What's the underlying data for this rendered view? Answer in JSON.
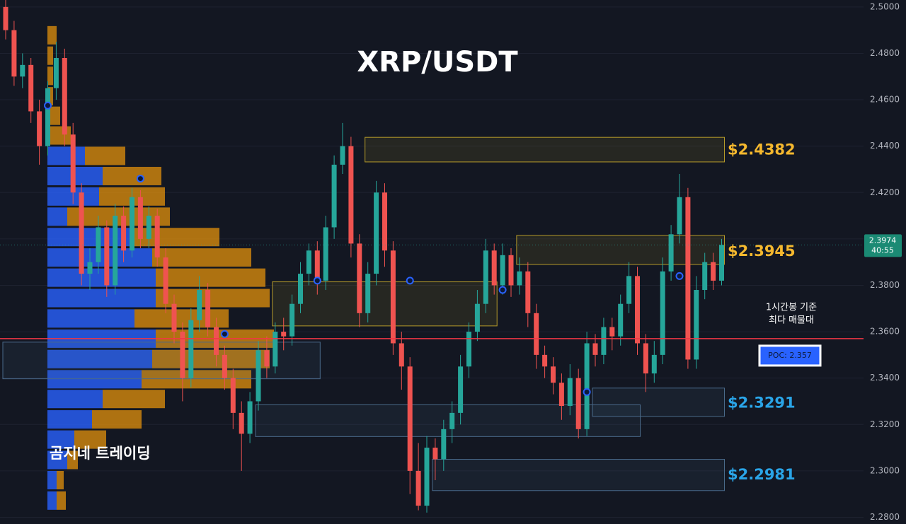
{
  "chart_data": {
    "type": "candlestick",
    "title": "XRP/USDT",
    "watermark": "곰지네 트레이딩",
    "annotation": [
      "1시간봉 기준",
      "최다 매물대"
    ],
    "up_color": "#26a69a",
    "down_color": "#ef5350",
    "ylim": [
      2.2771,
      2.503
    ],
    "yticks": [
      {
        "value": 2.28,
        "label": "2.2800"
      },
      {
        "value": 2.3,
        "label": "2.3000"
      },
      {
        "value": 2.32,
        "label": "2.3200"
      },
      {
        "value": 2.34,
        "label": "2.3400"
      },
      {
        "value": 2.36,
        "label": "2.3600"
      },
      {
        "value": 2.38,
        "label": "2.3800"
      },
      {
        "value": 2.4,
        "label": "2.4000"
      },
      {
        "value": 2.42,
        "label": "2.4200"
      },
      {
        "value": 2.44,
        "label": "2.4400"
      },
      {
        "value": 2.46,
        "label": "2.4600"
      },
      {
        "value": 2.48,
        "label": "2.4800"
      },
      {
        "value": 2.5,
        "label": "2.5000"
      }
    ],
    "countdown": "40:55",
    "poc": {
      "value": 2.357,
      "label": "POC: 2.357",
      "color": "#f23645"
    },
    "candles": [
      [
        2.5,
        2.503,
        2.486,
        2.49
      ],
      [
        2.49,
        2.494,
        2.466,
        2.47
      ],
      [
        2.47,
        2.48,
        2.465,
        2.475
      ],
      [
        2.475,
        2.478,
        2.45,
        2.455
      ],
      [
        2.455,
        2.46,
        2.432,
        2.44
      ],
      [
        2.44,
        2.468,
        2.436,
        2.465
      ],
      [
        2.465,
        2.485,
        2.46,
        2.478
      ],
      [
        2.478,
        2.482,
        2.44,
        2.445
      ],
      [
        2.445,
        2.45,
        2.415,
        2.42
      ],
      [
        2.42,
        2.424,
        2.38,
        2.385
      ],
      [
        2.385,
        2.396,
        2.378,
        2.39
      ],
      [
        2.39,
        2.41,
        2.385,
        2.405
      ],
      [
        2.405,
        2.408,
        2.375,
        2.38
      ],
      [
        2.38,
        2.415,
        2.376,
        2.41
      ],
      [
        2.41,
        2.414,
        2.39,
        2.395
      ],
      [
        2.395,
        2.422,
        2.392,
        2.418
      ],
      [
        2.418,
        2.421,
        2.396,
        2.4
      ],
      [
        2.4,
        2.414,
        2.396,
        2.41
      ],
      [
        2.41,
        2.413,
        2.388,
        2.392
      ],
      [
        2.392,
        2.396,
        2.368,
        2.372
      ],
      [
        2.372,
        2.376,
        2.355,
        2.36
      ],
      [
        2.36,
        2.364,
        2.33,
        2.34
      ],
      [
        2.34,
        2.37,
        2.336,
        2.365
      ],
      [
        2.365,
        2.384,
        2.36,
        2.378
      ],
      [
        2.378,
        2.381,
        2.358,
        2.362
      ],
      [
        2.362,
        2.366,
        2.345,
        2.35
      ],
      [
        2.35,
        2.354,
        2.335,
        2.34
      ],
      [
        2.34,
        2.344,
        2.318,
        2.325
      ],
      [
        2.325,
        2.33,
        2.3,
        2.316
      ],
      [
        2.316,
        2.334,
        2.312,
        2.33
      ],
      [
        2.33,
        2.356,
        2.326,
        2.352
      ],
      [
        2.352,
        2.358,
        2.34,
        2.345
      ],
      [
        2.345,
        2.364,
        2.342,
        2.36
      ],
      [
        2.36,
        2.366,
        2.352,
        2.358
      ],
      [
        2.358,
        2.376,
        2.354,
        2.372
      ],
      [
        2.372,
        2.39,
        2.368,
        2.385
      ],
      [
        2.385,
        2.398,
        2.38,
        2.395
      ],
      [
        2.395,
        2.399,
        2.376,
        2.382
      ],
      [
        2.382,
        2.41,
        2.378,
        2.405
      ],
      [
        2.405,
        2.436,
        2.4,
        2.432
      ],
      [
        2.432,
        2.45,
        2.428,
        2.44
      ],
      [
        2.44,
        2.444,
        2.392,
        2.398
      ],
      [
        2.398,
        2.402,
        2.362,
        2.368
      ],
      [
        2.368,
        2.39,
        2.364,
        2.385
      ],
      [
        2.385,
        2.425,
        2.38,
        2.42
      ],
      [
        2.42,
        2.424,
        2.388,
        2.395
      ],
      [
        2.395,
        2.399,
        2.35,
        2.355
      ],
      [
        2.355,
        2.36,
        2.335,
        2.345
      ],
      [
        2.345,
        2.349,
        2.29,
        2.3
      ],
      [
        2.3,
        2.312,
        2.283,
        2.285
      ],
      [
        2.285,
        2.315,
        2.282,
        2.31
      ],
      [
        2.31,
        2.314,
        2.296,
        2.305
      ],
      [
        2.305,
        2.322,
        2.3,
        2.318
      ],
      [
        2.318,
        2.33,
        2.312,
        2.325
      ],
      [
        2.325,
        2.35,
        2.32,
        2.345
      ],
      [
        2.345,
        2.364,
        2.34,
        2.36
      ],
      [
        2.36,
        2.378,
        2.356,
        2.372
      ],
      [
        2.372,
        2.4,
        2.368,
        2.395
      ],
      [
        2.395,
        2.398,
        2.376,
        2.38
      ],
      [
        2.38,
        2.398,
        2.376,
        2.393
      ],
      [
        2.393,
        2.396,
        2.375,
        2.38
      ],
      [
        2.38,
        2.392,
        2.376,
        2.386
      ],
      [
        2.386,
        2.39,
        2.362,
        2.368
      ],
      [
        2.368,
        2.372,
        2.344,
        2.35
      ],
      [
        2.35,
        2.354,
        2.34,
        2.345
      ],
      [
        2.345,
        2.349,
        2.333,
        2.338
      ],
      [
        2.338,
        2.342,
        2.322,
        2.328
      ],
      [
        2.328,
        2.346,
        2.324,
        2.34
      ],
      [
        2.34,
        2.344,
        2.314,
        2.318
      ],
      [
        2.318,
        2.36,
        2.315,
        2.355
      ],
      [
        2.355,
        2.359,
        2.345,
        2.35
      ],
      [
        2.35,
        2.366,
        2.346,
        2.362
      ],
      [
        2.362,
        2.366,
        2.352,
        2.358
      ],
      [
        2.358,
        2.376,
        2.354,
        2.372
      ],
      [
        2.372,
        2.39,
        2.368,
        2.384
      ],
      [
        2.384,
        2.388,
        2.35,
        2.355
      ],
      [
        2.355,
        2.359,
        2.334,
        2.342
      ],
      [
        2.342,
        2.356,
        2.338,
        2.35
      ],
      [
        2.35,
        2.392,
        2.346,
        2.386
      ],
      [
        2.386,
        2.406,
        2.382,
        2.402
      ],
      [
        2.402,
        2.428,
        2.398,
        2.418
      ],
      [
        2.418,
        2.422,
        2.344,
        2.348
      ],
      [
        2.348,
        2.384,
        2.344,
        2.378
      ],
      [
        2.378,
        2.394,
        2.374,
        2.39
      ],
      [
        2.39,
        2.394,
        2.378,
        2.382
      ],
      [
        2.382,
        2.4,
        2.38,
        2.3974
      ]
    ],
    "pivots": [
      {
        "index": 5,
        "price": 2.4575
      },
      {
        "index": 16,
        "price": 2.426
      },
      {
        "index": 26,
        "price": 2.359
      },
      {
        "index": 37,
        "price": 2.382
      },
      {
        "index": 48,
        "price": 2.382
      },
      {
        "index": 59,
        "price": 2.378
      },
      {
        "index": 69,
        "price": 2.334
      },
      {
        "index": 80,
        "price": 2.384
      }
    ],
    "zones": [
      {
        "from": 43,
        "to": 85,
        "low": 2.4332,
        "high": 2.4438,
        "color": "#b59a2a",
        "label_color": "#f5b82e",
        "label": "$2.4382",
        "level": 2.4382
      },
      {
        "from": 61,
        "to": 85,
        "low": 2.389,
        "high": 2.4015,
        "color": "#b59a2a",
        "label_color": "#f5b82e",
        "label": "$2.3945",
        "level": 2.3945
      },
      {
        "from": 70,
        "to": 85,
        "low": 2.3235,
        "high": 2.3357,
        "color": "#4a6a8a",
        "label_color": "#2aa5e8",
        "label": "$2.3291",
        "level": 2.3291
      },
      {
        "from": 51,
        "to": 85,
        "low": 2.2915,
        "high": 2.305,
        "color": "#4a6a8a",
        "label_color": "#2aa5e8",
        "label": "$2.2981",
        "level": 2.2981
      },
      {
        "from": 32,
        "to": 58,
        "low": 2.3625,
        "high": 2.3815,
        "color": "#b59a2a"
      },
      {
        "from": 0,
        "to": 37,
        "low": 2.3397,
        "high": 2.3555,
        "color": "#4a6a8a"
      },
      {
        "from": 30,
        "to": 75,
        "low": 2.3148,
        "high": 2.3285,
        "color": "#4a6a8a"
      }
    ],
    "profile": {
      "buy_color": "#2962ff",
      "sell_color": "#d68a0e",
      "rows": [
        {
          "price": 2.2872,
          "buy": 13,
          "sell": 13
        },
        {
          "price": 2.296,
          "buy": 13,
          "sell": 10
        },
        {
          "price": 2.3047,
          "buy": 28,
          "sell": 15
        },
        {
          "price": 2.3135,
          "buy": 38,
          "sell": 45
        },
        {
          "price": 2.3222,
          "buy": 63,
          "sell": 70
        },
        {
          "price": 2.331,
          "buy": 78,
          "sell": 88
        },
        {
          "price": 2.3395,
          "buy": 133,
          "sell": 155
        },
        {
          "price": 2.3482,
          "buy": 148,
          "sell": 166
        },
        {
          "price": 2.357,
          "buy": 153,
          "sell": 167
        },
        {
          "price": 2.3657,
          "buy": 123,
          "sell": 133
        },
        {
          "price": 2.3745,
          "buy": 153,
          "sell": 161
        },
        {
          "price": 2.3833,
          "buy": 153,
          "sell": 155
        },
        {
          "price": 2.392,
          "buy": 148,
          "sell": 140
        },
        {
          "price": 2.4008,
          "buy": 123,
          "sell": 120
        },
        {
          "price": 2.4096,
          "buy": 28,
          "sell": 145
        },
        {
          "price": 2.4183,
          "buy": 73,
          "sell": 93
        },
        {
          "price": 2.4271,
          "buy": 78,
          "sell": 83
        },
        {
          "price": 2.4358,
          "buy": 53,
          "sell": 57
        },
        {
          "price": 2.4446,
          "buy": 0,
          "sell": 33
        },
        {
          "price": 2.4531,
          "buy": 0,
          "sell": 18
        },
        {
          "price": 2.4615,
          "buy": 0,
          "sell": 8
        },
        {
          "price": 2.4703,
          "buy": 0,
          "sell": 8
        },
        {
          "price": 2.479,
          "buy": 0,
          "sell": 8
        },
        {
          "price": 2.4878,
          "buy": 0,
          "sell": 13
        }
      ]
    }
  }
}
